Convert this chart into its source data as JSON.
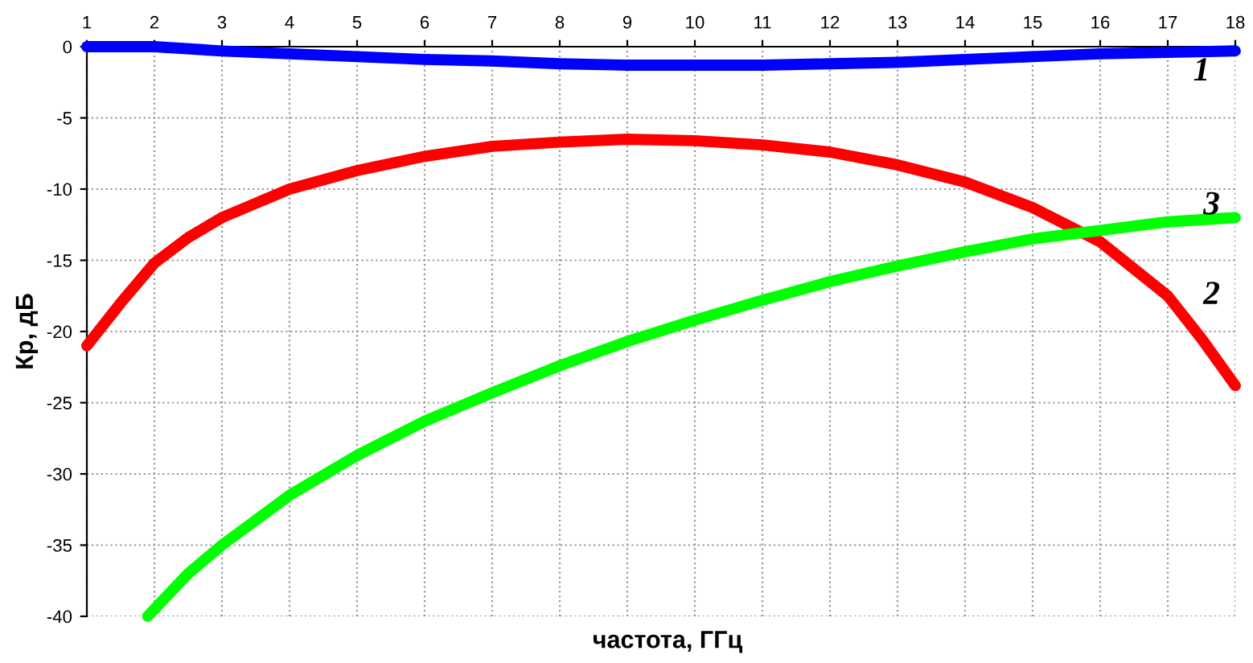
{
  "chart_data": {
    "type": "line",
    "xlabel": "частота, ГГц",
    "ylabel": "Кр, дБ",
    "xlim": [
      1,
      18
    ],
    "xticks": [
      1,
      2,
      3,
      4,
      5,
      6,
      7,
      8,
      9,
      10,
      11,
      12,
      13,
      14,
      15,
      16,
      17,
      18
    ],
    "ylim": [
      -40,
      0
    ],
    "yticks": [
      -40,
      -35,
      -30,
      -25,
      -20,
      -15,
      -10,
      -5,
      0
    ],
    "grid": true,
    "marker": "none",
    "line_style": "solid",
    "series": [
      {
        "name": "1",
        "color": "#0000ff",
        "x": [
          1,
          2,
          3,
          4,
          5,
          6,
          7,
          8,
          9,
          10,
          11,
          12,
          13,
          14,
          15,
          16,
          17,
          18
        ],
        "values": [
          0,
          0,
          -0.3,
          -0.5,
          -0.7,
          -0.9,
          -1.0,
          -1.2,
          -1.3,
          -1.3,
          -1.3,
          -1.2,
          -1.1,
          -0.9,
          -0.7,
          -0.5,
          -0.4,
          -0.3
        ]
      },
      {
        "name": "2",
        "color": "#ff0000",
        "x": [
          1,
          1.5,
          2,
          2.5,
          3,
          4,
          5,
          6,
          7,
          8,
          9,
          10,
          11,
          12,
          13,
          14,
          15,
          16,
          17,
          17.5,
          18
        ],
        "values": [
          -21,
          -18,
          -15.2,
          -13.4,
          -12.0,
          -10.0,
          -8.7,
          -7.7,
          -7.0,
          -6.7,
          -6.5,
          -6.6,
          -6.9,
          -7.4,
          -8.3,
          -9.5,
          -11.3,
          -13.7,
          -17.5,
          -20.5,
          -23.8
        ]
      },
      {
        "name": "3",
        "color": "#00ff00",
        "x": [
          1.9,
          2.5,
          3,
          4,
          5,
          6,
          7,
          8,
          9,
          10,
          11,
          12,
          13,
          14,
          15,
          16,
          17,
          18
        ],
        "values": [
          -40,
          -37,
          -35,
          -31.5,
          -28.7,
          -26.3,
          -24.3,
          -22.4,
          -20.7,
          -19.2,
          -17.8,
          -16.5,
          -15.4,
          -14.4,
          -13.5,
          -12.9,
          -12.3,
          -12.0
        ]
      }
    ]
  }
}
